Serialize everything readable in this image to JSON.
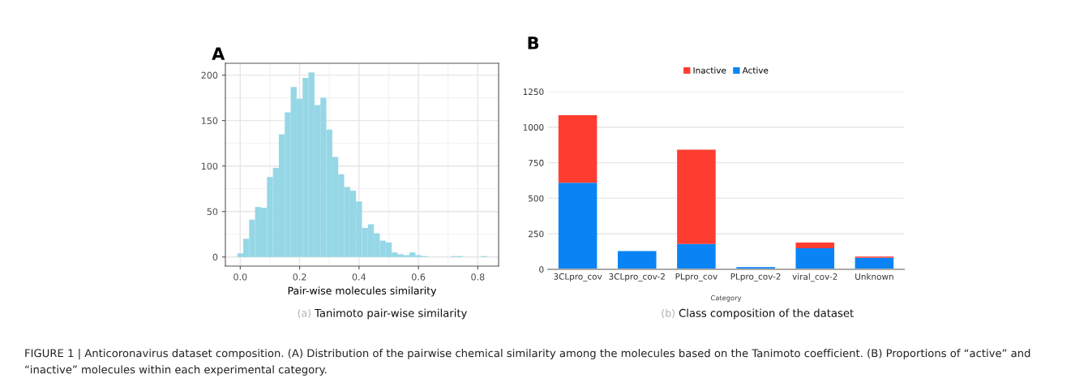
{
  "chart_data": [
    {
      "type": "histogram",
      "title": "A",
      "xlabel": "Pair-wise molecules similarity",
      "color": "#95d7e6",
      "bins": [
        -0.01,
        0.01,
        0.03,
        0.05,
        0.07,
        0.09,
        0.11,
        0.13,
        0.15,
        0.17,
        0.19,
        0.21,
        0.23,
        0.25,
        0.27,
        0.29,
        0.31,
        0.33,
        0.35,
        0.37,
        0.39,
        0.41,
        0.43,
        0.45,
        0.47,
        0.49,
        0.51,
        0.53,
        0.55,
        0.57,
        0.59,
        0.61,
        0.63,
        0.65,
        0.67,
        0.69,
        0.71,
        0.73,
        0.75,
        0.77,
        0.79,
        0.81,
        0.83
      ],
      "values": [
        4,
        20,
        41,
        55,
        54,
        88,
        98,
        135,
        159,
        187,
        174,
        197,
        203,
        167,
        175,
        140,
        110,
        91,
        77,
        73,
        61,
        32,
        36,
        26,
        18,
        16,
        5,
        3,
        2,
        5,
        2,
        1,
        0,
        0,
        0,
        0,
        1,
        1,
        0,
        0,
        0,
        1
      ],
      "xlim": [
        -0.05,
        0.87
      ],
      "ylim": [
        -10,
        213
      ],
      "xticks": [
        {
          "value": 0,
          "label": "0.0"
        },
        0.2,
        0.4,
        0.6,
        0.8
      ],
      "yticks": [
        0,
        50,
        100,
        150,
        200
      ],
      "grid": true,
      "annotations": [
        "(a)",
        "Tanimoto pair-wise similarity",
        "FIGURE 1 | Anticoronavirus dataset composition. (A) Distribution of the pairwise chemical similarity among the molecules based on the Tanimoto coefficient. (B) Proportions of “active” and “inactive” molecules within each experimental category."
      ]
    },
    {
      "type": "bar",
      "title": "B",
      "xlabel": "Category",
      "stacked": true,
      "legend": "top",
      "grid": "y",
      "categories": [
        "3CLpro_cov",
        "3CLpro_cov-2",
        "PLpro_cov",
        "PLpro_cov-2",
        "viral_cov-2",
        "Unknown"
      ],
      "series": [
        {
          "name": "Active",
          "color": "#0a84f5",
          "values": [
            609,
            128,
            178,
            15,
            149,
            82
          ]
        },
        {
          "name": "Inactive",
          "color": "#fd3d30",
          "values": [
            476,
            0,
            664,
            0,
            39,
            8
          ]
        }
      ],
      "ylim": [
        0,
        1250
      ],
      "yticks": [
        0,
        250,
        500,
        750,
        1000,
        1250
      ],
      "annotations": [
        "(b)",
        "Class composition of the dataset"
      ]
    }
  ]
}
